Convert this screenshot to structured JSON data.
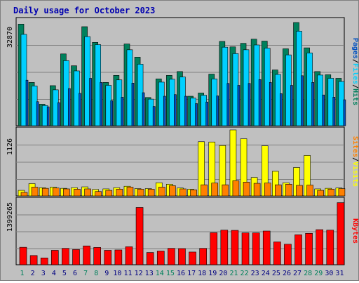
{
  "title": "Daily usage for October 2023",
  "colors": {
    "background": "#c0c0c0",
    "panel_dark": "#7f7f7f",
    "hits": "#00805c",
    "files": "#00d0ff",
    "pages": "#0050c0",
    "visits": "#ffff00",
    "sites": "#ff8000",
    "kbytes": "#ff0000",
    "title": "#0000b0",
    "weekend_day": "#00805c",
    "weekday_day": "#000080"
  },
  "chart_data": [
    {
      "type": "bar",
      "panel": "hits-files-pages",
      "y_max_label": "32870",
      "ylim": [
        0,
        32870
      ],
      "legend": [
        "Pages",
        "/",
        "Files",
        "/",
        "Hits"
      ],
      "categories": [
        "1",
        "2",
        "3",
        "4",
        "5",
        "6",
        "7",
        "8",
        "9",
        "10",
        "11",
        "12",
        "13",
        "14",
        "15",
        "16",
        "17",
        "18",
        "19",
        "20",
        "21",
        "22",
        "23",
        "24",
        "25",
        "26",
        "27",
        "28",
        "29",
        "30",
        "31"
      ],
      "series": [
        {
          "name": "Hits",
          "values": [
            31700,
            13500,
            6700,
            12500,
            22400,
            18700,
            30900,
            26000,
            13500,
            15700,
            25500,
            21400,
            8800,
            14600,
            15700,
            16900,
            9200,
            10200,
            16100,
            26300,
            24600,
            25700,
            27000,
            26400,
            17400,
            24000,
            32200,
            24300,
            16900,
            15900,
            14800
          ]
        },
        {
          "name": "Files",
          "values": [
            28500,
            12400,
            6300,
            11200,
            20300,
            17100,
            27800,
            25300,
            12600,
            14300,
            23700,
            19200,
            8300,
            13600,
            14500,
            15200,
            8600,
            9500,
            14600,
            24500,
            22500,
            23700,
            25200,
            24200,
            16000,
            22100,
            29500,
            22700,
            15800,
            14800,
            13800
          ]
        },
        {
          "name": "Pages",
          "values": [
            14200,
            7500,
            5900,
            7200,
            11600,
            10100,
            14800,
            13500,
            7800,
            8900,
            13300,
            10300,
            6000,
            9200,
            9700,
            9200,
            6900,
            7400,
            9300,
            13200,
            12600,
            13200,
            14400,
            13500,
            10000,
            12600,
            15600,
            13500,
            9600,
            8900,
            8100
          ]
        }
      ]
    },
    {
      "type": "bar",
      "panel": "visits-sites",
      "y_max_label": "1126",
      "ylim": [
        0,
        1126
      ],
      "legend": [
        "Sites",
        "/",
        "Visits"
      ],
      "categories": [
        "1",
        "2",
        "3",
        "4",
        "5",
        "6",
        "7",
        "8",
        "9",
        "10",
        "11",
        "12",
        "13",
        "14",
        "15",
        "16",
        "17",
        "18",
        "19",
        "20",
        "21",
        "22",
        "23",
        "24",
        "25",
        "26",
        "27",
        "28",
        "29",
        "30",
        "31"
      ],
      "series": [
        {
          "name": "Visits",
          "values": [
            95,
            210,
            140,
            150,
            130,
            140,
            155,
            110,
            120,
            140,
            165,
            125,
            125,
            225,
            200,
            135,
            115,
            925,
            920,
            860,
            1126,
            975,
            315,
            855,
            420,
            225,
            485,
            690,
            120,
            130,
            135
          ]
        },
        {
          "name": "Sites",
          "values": [
            60,
            150,
            130,
            135,
            120,
            115,
            120,
            75,
            95,
            115,
            150,
            115,
            115,
            150,
            175,
            120,
            105,
            190,
            220,
            190,
            260,
            235,
            215,
            220,
            190,
            200,
            180,
            185,
            95,
            115,
            125
          ]
        }
      ]
    },
    {
      "type": "bar",
      "panel": "kbytes",
      "y_max_label": "1399265",
      "ylim": [
        0,
        1399265
      ],
      "legend": [
        "KBytes"
      ],
      "categories": [
        "1",
        "2",
        "3",
        "4",
        "5",
        "6",
        "7",
        "8",
        "9",
        "10",
        "11",
        "12",
        "13",
        "14",
        "15",
        "16",
        "17",
        "18",
        "19",
        "20",
        "21",
        "22",
        "23",
        "24",
        "25",
        "26",
        "27",
        "28",
        "29",
        "30",
        "31"
      ],
      "series": [
        {
          "name": "KBytes",
          "values": [
            378000,
            200000,
            148000,
            312000,
            355000,
            330000,
            408000,
            375000,
            312000,
            320000,
            390000,
            1240000,
            265000,
            297000,
            355000,
            350000,
            275000,
            355000,
            695000,
            750000,
            745000,
            690000,
            690000,
            730000,
            495000,
            445000,
            650000,
            680000,
            760000,
            750000,
            1345000
          ]
        }
      ]
    }
  ]
}
